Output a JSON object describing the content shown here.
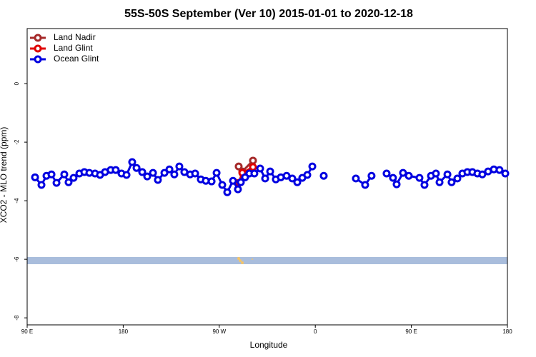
{
  "chart_data": {
    "type": "line",
    "title": "55S-50S September (Ver 10)   2015-01-01 to 2020-12-18",
    "x_label": "Longitude",
    "y_label": "XCO2 - MLO trend (ppm)",
    "xlim": [
      90,
      540
    ],
    "ylim": [
      -8.24,
      1.88
    ],
    "xticks": [
      {
        "value": 90,
        "label": "90 E"
      },
      180,
      {
        "value": 270,
        "label": "90 W"
      },
      {
        "value": 360,
        "label": "0"
      },
      {
        "value": 450,
        "label": "90 E"
      },
      {
        "value": 540,
        "label": "180"
      }
    ],
    "yticks": [
      -8,
      -6,
      -4,
      -2,
      0
    ],
    "legend": "top-left",
    "series": [
      {
        "name": "Land Nadir",
        "color": "#a52a2a",
        "x": [
          288.2,
          291.6,
          301.6
        ],
        "values": [
          -2.83,
          -3.0,
          -2.63
        ]
      },
      {
        "name": "Land Glint",
        "color": "#e00000",
        "x": [
          288.2,
          291.6,
          301.6
        ],
        "values": [
          -3.39,
          -3.05,
          -2.85
        ]
      },
      {
        "name": "Ocean Glint",
        "color": "#0000e0",
        "x": [
          97.4,
          103.4,
          108.1,
          112.8,
          117.5,
          124.8,
          128.8,
          133.5,
          138.9,
          143.6,
          148.3,
          153.6,
          158.3,
          163,
          168.3,
          173,
          178.4,
          183.1,
          188.4,
          192.5,
          197.8,
          202.5,
          207.9,
          212.5,
          218.6,
          223.3,
          227.9,
          232.6,
          237.3,
          242.7,
          247.4,
          252.7,
          257.4,
          262.8,
          267.5,
          272.8,
          277.5,
          282.9,
          287.5,
          290.2,
          294.2,
          298.2,
          302.9,
          308.3,
          313,
          317.7,
          323,
          327.7,
          333.1,
          338.4,
          343.1,
          347.8,
          352.5,
          357.2,
          null,
          367.9,
          null,
          398,
          406.7,
          412.7,
          null,
          426.8,
          432.8,
          436.2,
          442.2,
          447.6,
          457.6,
          462.3,
          468.4,
          473,
          476.4,
          483.8,
          487.7,
          493.1,
          497.8,
          502.5,
          507.2,
          511.9,
          516.5,
          521.9,
          527.3,
          532.6,
          538
        ],
        "values": [
          -3.2,
          -3.46,
          -3.15,
          -3.1,
          -3.39,
          -3.1,
          -3.37,
          -3.22,
          -3.07,
          -3.02,
          -3.05,
          -3.07,
          -3.12,
          -3.02,
          -2.95,
          -2.95,
          -3.07,
          -3.12,
          -2.68,
          -2.88,
          -3.02,
          -3.17,
          -3.05,
          -3.29,
          -3.05,
          -2.93,
          -3.1,
          -2.83,
          -3.02,
          -3.1,
          -3.07,
          -3.27,
          -3.32,
          -3.34,
          -3.05,
          -3.46,
          -3.71,
          -3.32,
          -3.61,
          -3.37,
          -3.2,
          -3.07,
          -3.07,
          -2.9,
          -3.24,
          -3.0,
          -3.27,
          -3.2,
          -3.15,
          -3.24,
          -3.37,
          -3.22,
          -3.12,
          -2.83,
          null,
          -3.15,
          null,
          -3.24,
          -3.46,
          -3.15,
          null,
          -3.07,
          -3.22,
          -3.44,
          -3.05,
          -3.15,
          -3.22,
          -3.46,
          -3.15,
          -3.07,
          -3.37,
          -3.1,
          -3.37,
          -3.24,
          -3.07,
          -3.02,
          -3.02,
          -3.07,
          -3.1,
          -3.0,
          -2.93,
          -2.95,
          -3.07
        ]
      }
    ]
  }
}
